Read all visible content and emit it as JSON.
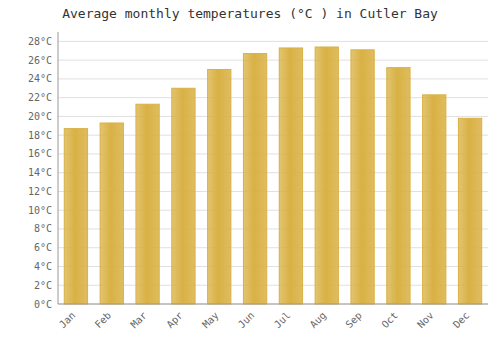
{
  "chart_data": {
    "type": "bar",
    "title": "Average monthly temperatures (°C ) in Cutler Bay",
    "categories": [
      "Jan",
      "Feb",
      "Mar",
      "Apr",
      "May",
      "Jun",
      "Jul",
      "Aug",
      "Sep",
      "Oct",
      "Nov",
      "Dec"
    ],
    "values": [
      18.7,
      19.3,
      21.3,
      23.0,
      25.0,
      26.7,
      27.3,
      27.4,
      27.1,
      25.2,
      22.3,
      19.8
    ],
    "color": "#FFD050",
    "ylim": [
      0,
      29
    ],
    "yticks": [
      {
        "value": 0,
        "label": "0°C"
      },
      {
        "value": 2,
        "label": "2°C"
      },
      {
        "value": 4,
        "label": "4°C"
      },
      {
        "value": 6,
        "label": "6°C"
      },
      {
        "value": 8,
        "label": "8°C"
      },
      {
        "value": 10,
        "label": "10°C"
      },
      {
        "value": 12,
        "label": "12°C"
      },
      {
        "value": 14,
        "label": "14°C"
      },
      {
        "value": 16,
        "label": "16°C"
      },
      {
        "value": 18,
        "label": "18°C"
      },
      {
        "value": 20,
        "label": "20°C"
      },
      {
        "value": 22,
        "label": "22°C"
      },
      {
        "value": 24,
        "label": "24°C"
      },
      {
        "value": 26,
        "label": "26°C"
      },
      {
        "value": 28,
        "label": "28°C"
      }
    ],
    "grid": true
  }
}
